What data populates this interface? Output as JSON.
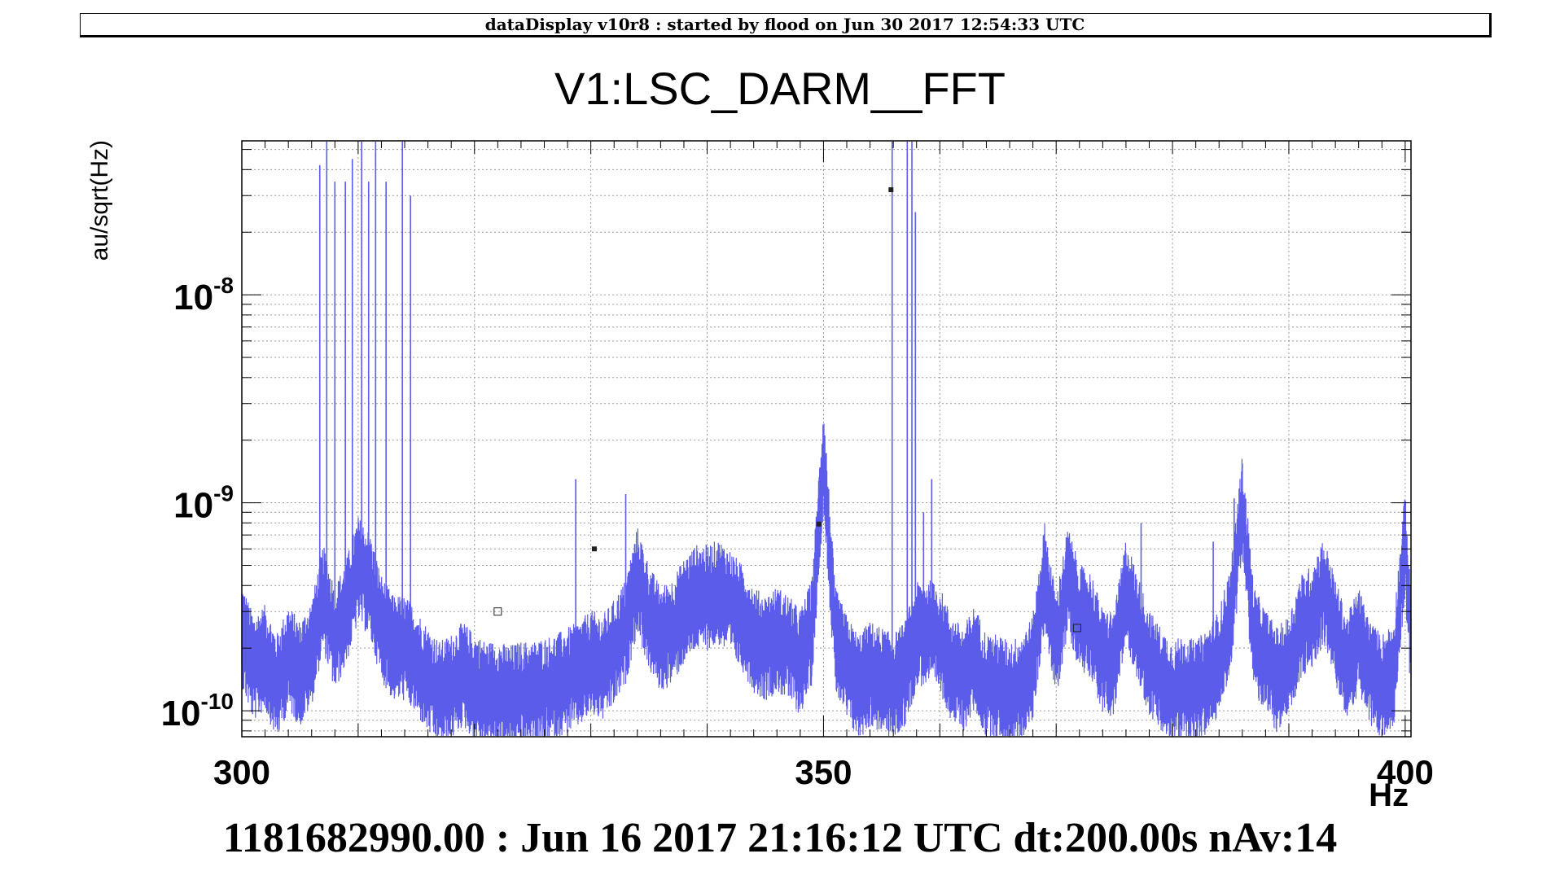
{
  "header": {
    "text": "dataDisplay v10r8 : started by flood on Jun 30 2017 12:54:33 UTC"
  },
  "footer": {
    "text": "1181682990.00 : Jun 16 2017 21:16:12 UTC dt:200.00s nAv:14"
  },
  "colors": {
    "series": "#5c5ceb",
    "grid": "#9a9a9a",
    "axis": "#000000"
  },
  "chart_data": {
    "type": "line",
    "title": "V1:LSC_DARM__FFT",
    "xlabel": "Hz",
    "ylabel": "au/sqrt(Hz)",
    "xlim": [
      300,
      400.5
    ],
    "ylim": [
      7.5e-11,
      5.5e-08
    ],
    "yscale": "log",
    "grid": true,
    "x_ticks": [
      {
        "value": 300,
        "label": "300"
      },
      {
        "value": 350,
        "label": "350"
      },
      {
        "value": 400,
        "label": "400"
      }
    ],
    "y_ticks": [
      {
        "value": 1e-10,
        "base": "10",
        "exp": "-10"
      },
      {
        "value": 1e-09,
        "base": "10",
        "exp": "-9"
      },
      {
        "value": 1e-08,
        "base": "10",
        "exp": "-8"
      }
    ],
    "series": [
      {
        "baseline": [
          [
            300,
            2.3e-10
          ],
          [
            301,
            1.6e-10
          ],
          [
            302,
            1.8e-10
          ],
          [
            303,
            1.3e-10
          ],
          [
            304,
            1.8e-10
          ],
          [
            305,
            1.5e-10
          ],
          [
            306,
            1.9e-10
          ],
          [
            307,
            3.5e-10
          ],
          [
            308,
            2.2e-10
          ],
          [
            309,
            3e-10
          ],
          [
            310,
            4.8e-10
          ],
          [
            311,
            4e-10
          ],
          [
            312,
            2.5e-10
          ],
          [
            313,
            2e-10
          ],
          [
            314,
            2e-10
          ],
          [
            315,
            1.7e-10
          ],
          [
            316,
            1.4e-10
          ],
          [
            317,
            1.2e-10
          ],
          [
            318,
            1.3e-10
          ],
          [
            319,
            1.5e-10
          ],
          [
            320,
            1.3e-10
          ],
          [
            321,
            1.2e-10
          ],
          [
            322,
            1.2e-10
          ],
          [
            323,
            1.15e-10
          ],
          [
            324,
            1.2e-10
          ],
          [
            325,
            1.2e-10
          ],
          [
            326,
            1.25e-10
          ],
          [
            327,
            1.3e-10
          ],
          [
            328,
            1.4e-10
          ],
          [
            329,
            1.5e-10
          ],
          [
            330,
            1.7e-10
          ],
          [
            331,
            1.6e-10
          ],
          [
            332,
            1.9e-10
          ],
          [
            333,
            2.4e-10
          ],
          [
            334,
            4.3e-10
          ],
          [
            335,
            2.8e-10
          ],
          [
            336,
            2.2e-10
          ],
          [
            337,
            2.4e-10
          ],
          [
            338,
            3e-10
          ],
          [
            339,
            3.5e-10
          ],
          [
            340,
            3.5e-10
          ],
          [
            341,
            3.7e-10
          ],
          [
            342,
            3.3e-10
          ],
          [
            343,
            2.8e-10
          ],
          [
            344,
            2.2e-10
          ],
          [
            345,
            2e-10
          ],
          [
            346,
            2.2e-10
          ],
          [
            347,
            2e-10
          ],
          [
            348,
            1.7e-10
          ],
          [
            349,
            2.4e-10
          ],
          [
            350,
            1.7e-09
          ],
          [
            351,
            2.2e-10
          ],
          [
            352,
            1.6e-10
          ],
          [
            353,
            1.3e-10
          ],
          [
            354,
            1.5e-10
          ],
          [
            355,
            1.4e-10
          ],
          [
            356,
            1.3e-10
          ],
          [
            357,
            1.5e-10
          ],
          [
            358,
            2.3e-10
          ],
          [
            359,
            2.4e-10
          ],
          [
            360,
            2.2e-10
          ],
          [
            361,
            1.6e-10
          ],
          [
            362,
            1.4e-10
          ],
          [
            363,
            1.8e-10
          ],
          [
            364,
            1.3e-10
          ],
          [
            365,
            1.3e-10
          ],
          [
            366,
            1.2e-10
          ],
          [
            367,
            1.3e-10
          ],
          [
            368,
            1.6e-10
          ],
          [
            369,
            4.5e-10
          ],
          [
            370,
            2e-10
          ],
          [
            371,
            4.3e-10
          ],
          [
            372,
            2.8e-10
          ],
          [
            373,
            2.6e-10
          ],
          [
            374,
            1.7e-10
          ],
          [
            375,
            1.7e-10
          ],
          [
            376,
            3.8e-10
          ],
          [
            377,
            2.5e-10
          ],
          [
            378,
            1.7e-10
          ],
          [
            379,
            1.4e-10
          ],
          [
            380,
            1.2e-10
          ],
          [
            381,
            1.3e-10
          ],
          [
            382,
            1.2e-10
          ],
          [
            383,
            1.4e-10
          ],
          [
            384,
            1.7e-10
          ],
          [
            385,
            2.8e-10
          ],
          [
            386,
            9.5e-10
          ],
          [
            387,
            2.2e-10
          ],
          [
            388,
            1.7e-10
          ],
          [
            389,
            1.4e-10
          ],
          [
            390,
            1.6e-10
          ],
          [
            391,
            2.5e-10
          ],
          [
            392,
            2.8e-10
          ],
          [
            393,
            3.8e-10
          ],
          [
            394,
            2.4e-10
          ],
          [
            395,
            1.6e-10
          ],
          [
            396,
            2.2e-10
          ],
          [
            397,
            1.5e-10
          ],
          [
            398,
            1.3e-10
          ],
          [
            399,
            1.5e-10
          ],
          [
            400,
            6.5e-10
          ],
          [
            400.5,
            2e-10
          ]
        ],
        "spikes": [
          [
            306.7,
            4.2e-08
          ],
          [
            307.3,
            5.5e-08
          ],
          [
            308.0,
            3.5e-08
          ],
          [
            308.9,
            3.5e-08
          ],
          [
            309.5,
            4.5e-08
          ],
          [
            310.3,
            5.5e-08
          ],
          [
            310.9,
            3.5e-08
          ],
          [
            311.5,
            5.5e-08
          ],
          [
            312.4,
            3.5e-08
          ],
          [
            313.8,
            5.5e-08
          ],
          [
            314.5,
            3e-08
          ],
          [
            328.7,
            1.3e-09
          ],
          [
            333.0,
            1.1e-09
          ],
          [
            355.9,
            5.5e-08
          ],
          [
            357.2,
            5.5e-08
          ],
          [
            357.6,
            5.5e-08
          ],
          [
            357.9,
            2.5e-08
          ],
          [
            358.6,
            9e-10
          ],
          [
            359.3,
            1.3e-09
          ],
          [
            377.3,
            8e-10
          ],
          [
            383.5,
            6.5e-10
          ],
          [
            385.3,
            1.05e-09
          ]
        ]
      }
    ],
    "markers": [
      {
        "x": 322.0,
        "y": 3e-10,
        "filled": false
      },
      {
        "x": 330.3,
        "y": 6e-10,
        "filled": true
      },
      {
        "x": 349.6,
        "y": 7.9e-10,
        "filled": true
      },
      {
        "x": 355.8,
        "y": 3.2e-08,
        "filled": true
      },
      {
        "x": 371.8,
        "y": 2.5e-10,
        "filled": false
      }
    ]
  }
}
